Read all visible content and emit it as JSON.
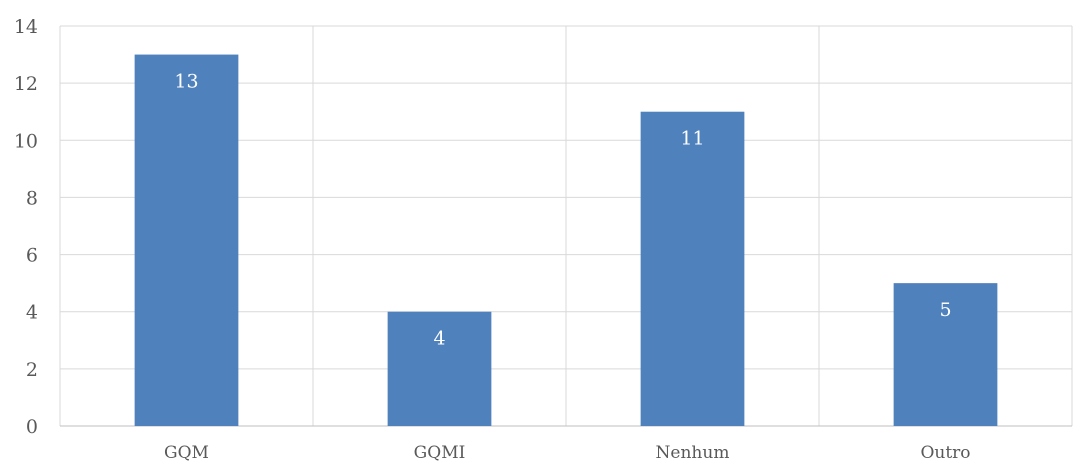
{
  "chart_data": {
    "type": "bar",
    "categories": [
      "GQM",
      "GQMI",
      "Nenhum",
      "Outro"
    ],
    "values": [
      13,
      4,
      11,
      5
    ],
    "data_labels": [
      "13",
      "4",
      "11",
      "5"
    ],
    "y_ticks": [
      "0",
      "2",
      "4",
      "6",
      "8",
      "10",
      "12",
      "14"
    ],
    "ylim": [
      0,
      14
    ],
    "grid": true,
    "legend": "none",
    "bar_color": "#4f81bd"
  }
}
